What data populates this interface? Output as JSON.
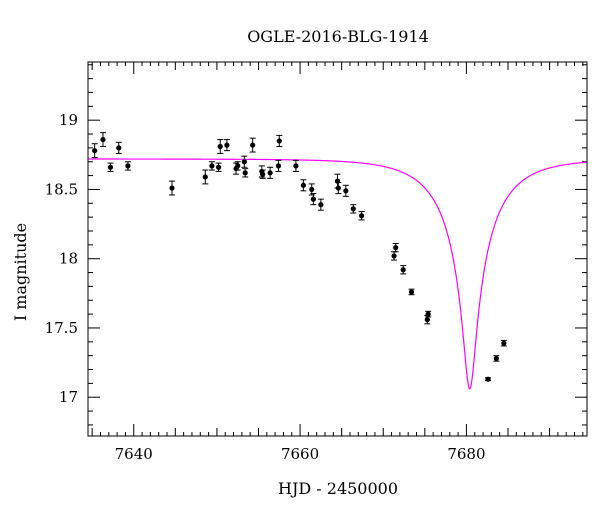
{
  "chart_data": {
    "type": "scatter",
    "title": "OGLE-2016-BLG-1914",
    "xlabel": "HJD - 2450000",
    "ylabel": "I magnitude",
    "xlim": [
      7634.5,
      7694.5
    ],
    "ylim": [
      19.42,
      16.72
    ],
    "y_inverted": true,
    "x_ticks": [
      7640,
      7660,
      7680
    ],
    "y_ticks": [
      17,
      17.5,
      18,
      18.5,
      19
    ],
    "y_tick_labels": [
      "17",
      "17.5",
      "18",
      "18.5",
      "19"
    ],
    "grid": false,
    "series": [
      {
        "kind": "points_with_errorbars",
        "color": "#000000",
        "points": [
          {
            "x": 7635.3,
            "y": 18.78,
            "err": 0.05
          },
          {
            "x": 7636.3,
            "y": 18.86,
            "err": 0.05
          },
          {
            "x": 7637.2,
            "y": 18.66,
            "err": 0.03
          },
          {
            "x": 7638.2,
            "y": 18.8,
            "err": 0.04
          },
          {
            "x": 7639.3,
            "y": 18.67,
            "err": 0.03
          },
          {
            "x": 7644.6,
            "y": 18.51,
            "err": 0.05
          },
          {
            "x": 7648.6,
            "y": 18.59,
            "err": 0.05
          },
          {
            "x": 7649.4,
            "y": 18.67,
            "err": 0.03
          },
          {
            "x": 7650.2,
            "y": 18.66,
            "err": 0.03
          },
          {
            "x": 7650.4,
            "y": 18.81,
            "err": 0.05
          },
          {
            "x": 7651.2,
            "y": 18.82,
            "err": 0.04
          },
          {
            "x": 7652.3,
            "y": 18.65,
            "err": 0.04
          },
          {
            "x": 7652.5,
            "y": 18.67,
            "err": 0.03
          },
          {
            "x": 7653.3,
            "y": 18.7,
            "err": 0.04
          },
          {
            "x": 7653.4,
            "y": 18.62,
            "err": 0.03
          },
          {
            "x": 7654.3,
            "y": 18.82,
            "err": 0.05
          },
          {
            "x": 7655.4,
            "y": 18.63,
            "err": 0.04
          },
          {
            "x": 7655.5,
            "y": 18.61,
            "err": 0.03
          },
          {
            "x": 7656.4,
            "y": 18.62,
            "err": 0.04
          },
          {
            "x": 7657.4,
            "y": 18.67,
            "err": 0.04
          },
          {
            "x": 7657.5,
            "y": 18.85,
            "err": 0.04
          },
          {
            "x": 7659.5,
            "y": 18.67,
            "err": 0.04
          },
          {
            "x": 7660.4,
            "y": 18.53,
            "err": 0.04
          },
          {
            "x": 7661.4,
            "y": 18.5,
            "err": 0.04
          },
          {
            "x": 7661.6,
            "y": 18.43,
            "err": 0.04
          },
          {
            "x": 7662.5,
            "y": 18.39,
            "err": 0.04
          },
          {
            "x": 7664.5,
            "y": 18.56,
            "err": 0.05
          },
          {
            "x": 7664.6,
            "y": 18.51,
            "err": 0.04
          },
          {
            "x": 7665.5,
            "y": 18.49,
            "err": 0.04
          },
          {
            "x": 7666.4,
            "y": 18.36,
            "err": 0.03
          },
          {
            "x": 7667.4,
            "y": 18.31,
            "err": 0.03
          },
          {
            "x": 7671.3,
            "y": 18.02,
            "err": 0.03
          },
          {
            "x": 7671.5,
            "y": 18.08,
            "err": 0.03
          },
          {
            "x": 7672.4,
            "y": 17.92,
            "err": 0.03
          },
          {
            "x": 7673.4,
            "y": 17.76,
            "err": 0.02
          },
          {
            "x": 7675.3,
            "y": 17.56,
            "err": 0.03
          },
          {
            "x": 7675.4,
            "y": 17.6,
            "err": 0.02
          },
          {
            "x": 7682.6,
            "y": 17.13,
            "err": 0.01
          },
          {
            "x": 7683.6,
            "y": 17.28,
            "err": 0.02
          },
          {
            "x": 7684.5,
            "y": 17.39,
            "err": 0.02
          }
        ]
      },
      {
        "kind": "model_curve",
        "color": "#ff00ff",
        "model": {
          "t0": 7680.4,
          "tE": 6.8,
          "u0": 0.1,
          "base": 18.72,
          "fs": 0.4
        }
      }
    ]
  }
}
